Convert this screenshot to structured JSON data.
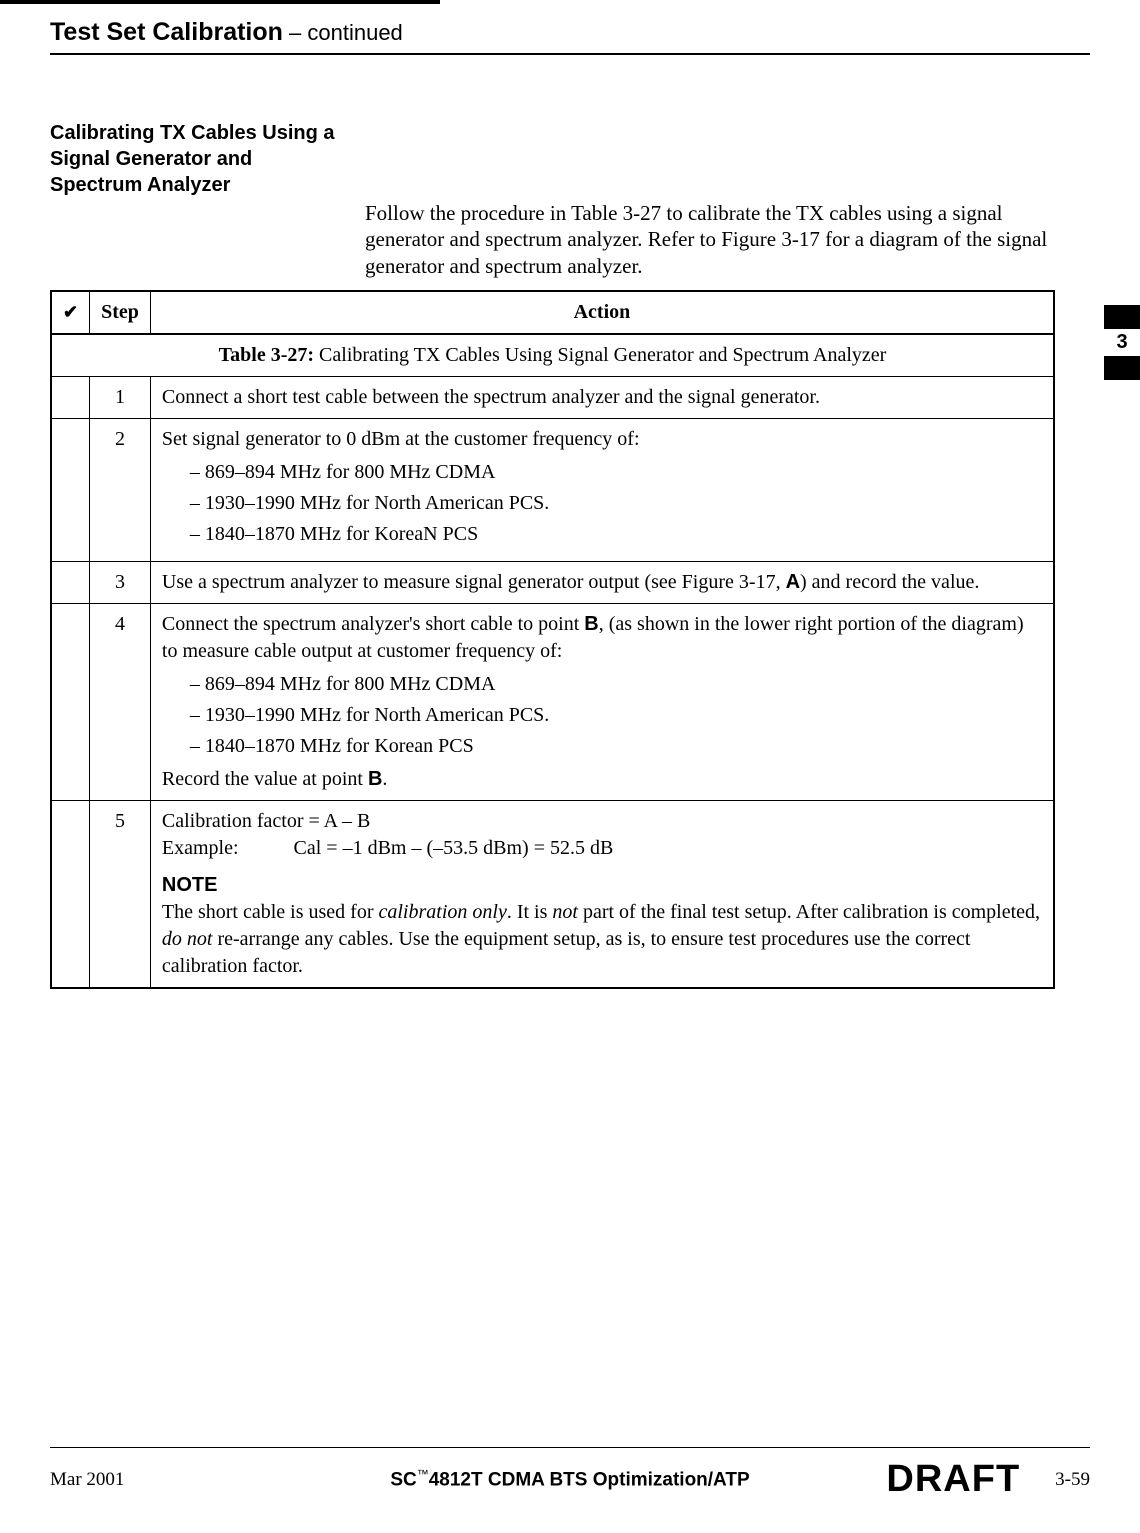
{
  "header": {
    "title": "Test Set Calibration",
    "continued": " – continued"
  },
  "section_heading": "Calibrating TX Cables Using a\nSignal Generator and\nSpectrum Analyzer",
  "intro": "Follow the procedure in Table 3-27 to calibrate the TX cables using a signal generator and spectrum analyzer. Refer to Figure 3-17 for a diagram of the signal generator and spectrum analyzer.",
  "table": {
    "caption_label": "Table 3-27:",
    "caption_text": " Calibrating TX Cables Using Signal Generator and Spectrum Analyzer",
    "col_check": "✔",
    "col_step": "Step",
    "col_action": "Action",
    "rows": {
      "r1": {
        "step": "1",
        "action": "Connect a short test cable between the spectrum analyzer and the signal generator."
      },
      "r2": {
        "step": "2",
        "lead": "Set signal generator to 0 dBm at the customer frequency of:",
        "b1": "869–894 MHz for 800 MHz CDMA",
        "b2": "1930–1990 MHz for North American PCS.",
        "b3": "1840–1870 MHz for KoreaN PCS"
      },
      "r3": {
        "step": "3",
        "pre": "Use a spectrum analyzer to measure signal generator output (see Figure 3-17, ",
        "letter": "A",
        "post": ") and record the value."
      },
      "r4": {
        "step": "4",
        "pre": "Connect the spectrum analyzer's short cable to point ",
        "letter": "B",
        "mid": ", (as shown in the lower right portion of the diagram) to measure cable output at customer frequency of:",
        "b1": "869–894 MHz for 800 MHz CDMA",
        "b2": "1930–1990 MHz for North American PCS.",
        "b3": "1840–1870 MHz for Korean PCS",
        "trail_pre": "Record the value at point ",
        "trail_letter": "B",
        "trail_post": "."
      },
      "r5": {
        "step": "5",
        "line1": "Calibration factor = A – B",
        "example": "Example:           Cal = –1 dBm – (–53.5 dBm) = 52.5 dB",
        "note_label": "NOTE",
        "note_p1": "The short cable is used for ",
        "note_i1": "calibration only",
        "note_p2": ". It is ",
        "note_i2": "not",
        "note_p3": " part of the final test setup. After calibration is completed, ",
        "note_i3": "do not",
        "note_p4": " re-arrange any cables. Use the equipment setup, as is, to ensure test procedures use the correct calibration factor."
      }
    }
  },
  "tab": {
    "num": "3"
  },
  "footer": {
    "date": "Mar 2001",
    "center_pre": "SC",
    "center_tm": "™",
    "center_post": "4812T CDMA BTS Optimization/ATP",
    "draft": "DRAFT",
    "pagenum": "3-59"
  },
  "colors": {
    "text": "#000000",
    "background": "#ffffff"
  },
  "fonts": {
    "serif": "Times New Roman",
    "sans": "Arial"
  }
}
